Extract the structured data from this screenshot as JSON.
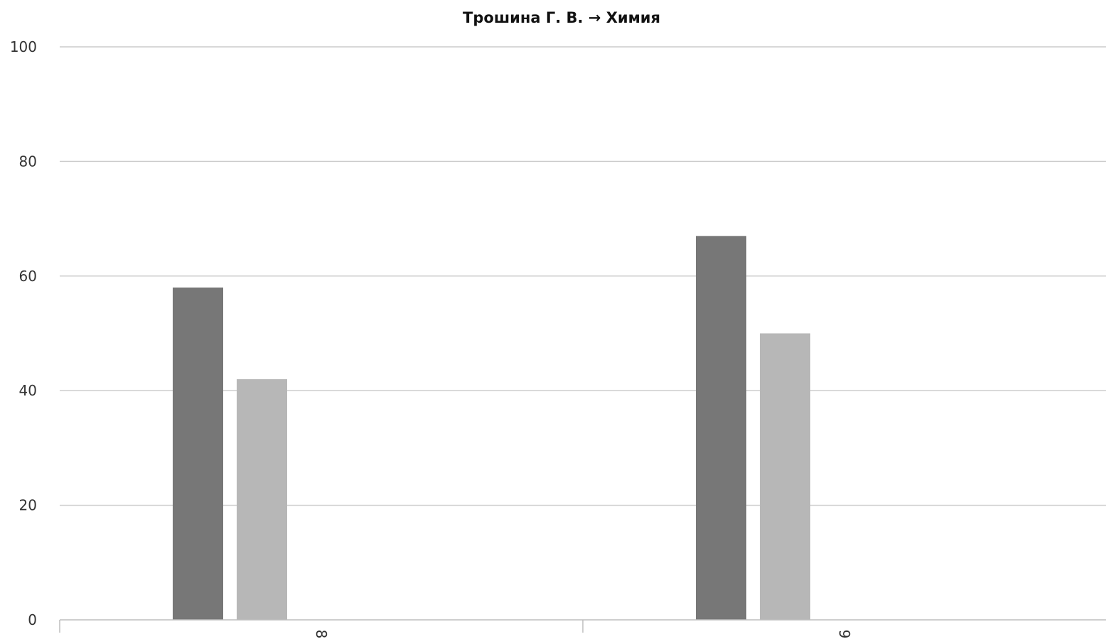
{
  "chart_data": {
    "type": "bar",
    "title": "Трошина Г. В. → Химия",
    "xlabel": "",
    "ylabel": "",
    "categories": [
      "8",
      "9"
    ],
    "series": [
      {
        "values": [
          58,
          67
        ],
        "color": "#777777"
      },
      {
        "values": [
          42,
          50
        ],
        "color": "#b7b7b7"
      }
    ],
    "ylim": [
      0,
      100
    ],
    "yticks": [
      "0",
      "20",
      "40",
      "60",
      "80",
      "100"
    ],
    "grid": true,
    "x_tick_rotation": "vertical"
  }
}
